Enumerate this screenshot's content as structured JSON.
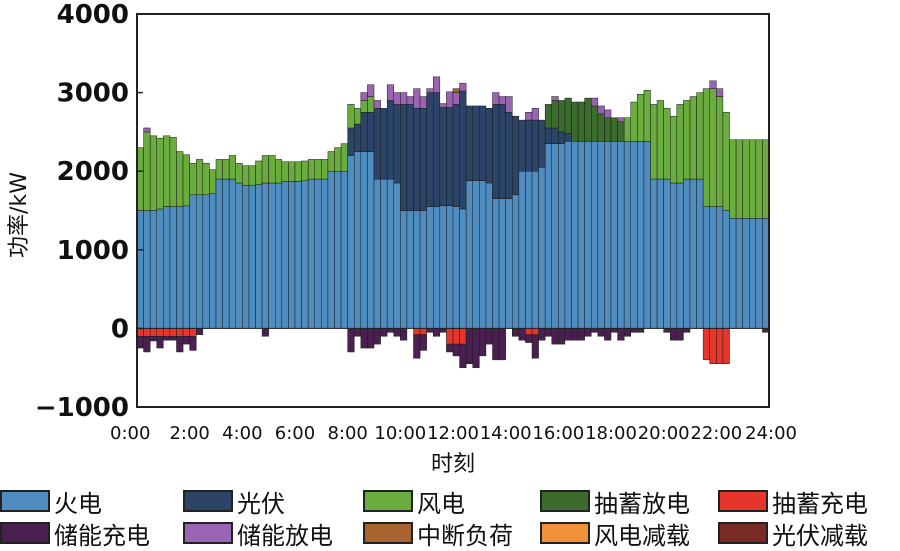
{
  "chart_data": {
    "type": "bar",
    "stacked": true,
    "xlabel": "时刻",
    "ylabel": "功率/kW",
    "ylim": [
      -1000,
      4000
    ],
    "yticks": [
      4000,
      3000,
      2000,
      1000,
      0,
      -1000
    ],
    "ytick_labels": [
      "4000",
      "3000",
      "2000",
      "1000",
      "0",
      "−1000"
    ],
    "xticks": [
      "0:00",
      "2:00",
      "4:00",
      "6:00",
      "8:00",
      "10:00",
      "12:00",
      "14:00",
      "16:00",
      "18:00",
      "20:00",
      "22:00",
      "24:00"
    ],
    "n_intervals": 96,
    "series": [
      {
        "name": "火电",
        "color": "#4f8cc0",
        "values": [
          1500,
          1500,
          1500,
          1520,
          1550,
          1550,
          1550,
          1560,
          1700,
          1700,
          1700,
          1720,
          1900,
          1900,
          1900,
          1850,
          1820,
          1820,
          1830,
          1850,
          1850,
          1850,
          1870,
          1870,
          1870,
          1880,
          1900,
          1900,
          1900,
          2000,
          2000,
          2000,
          2200,
          2250,
          2250,
          2250,
          1900,
          1900,
          1900,
          1850,
          1500,
          1500,
          1500,
          1500,
          1550,
          1550,
          1560,
          1560,
          1550,
          1520,
          1880,
          1880,
          1880,
          1850,
          1650,
          1650,
          1650,
          1700,
          2000,
          2000,
          2000,
          2050,
          2350,
          2350,
          2350,
          2380,
          2380,
          2380,
          2380,
          2380,
          2380,
          2380,
          2380,
          2380,
          2380,
          2380,
          2380,
          2380,
          1900,
          1900,
          1900,
          1850,
          1850,
          1900,
          1900,
          1900,
          1550,
          1550,
          1550,
          1500,
          1400,
          1400,
          1400,
          1400,
          1400,
          1400
        ]
      },
      {
        "name": "光伏",
        "color": "#2b4468",
        "values": [
          0,
          0,
          0,
          0,
          0,
          0,
          0,
          0,
          0,
          0,
          0,
          0,
          0,
          0,
          0,
          0,
          0,
          0,
          0,
          0,
          0,
          0,
          0,
          0,
          0,
          0,
          0,
          0,
          0,
          0,
          0,
          0,
          350,
          350,
          500,
          500,
          900,
          900,
          1000,
          1000,
          1350,
          1350,
          1300,
          1300,
          1450,
          1450,
          1250,
          1250,
          1300,
          1500,
          950,
          950,
          950,
          950,
          1200,
          1200,
          1100,
          1000,
          650,
          650,
          650,
          600,
          200,
          200,
          150,
          100,
          0,
          0,
          0,
          0,
          0,
          0,
          0,
          0,
          0,
          0,
          0,
          0,
          0,
          0,
          0,
          0,
          0,
          0,
          0,
          0,
          0,
          0,
          0,
          0,
          0,
          0,
          0,
          0,
          0,
          0
        ]
      },
      {
        "name": "风电",
        "color": "#6aad3e",
        "values": [
          800,
          1000,
          950,
          900,
          900,
          880,
          700,
          650,
          400,
          450,
          400,
          300,
          250,
          250,
          300,
          250,
          250,
          250,
          300,
          350,
          350,
          300,
          250,
          250,
          250,
          250,
          250,
          250,
          250,
          250,
          300,
          350,
          300,
          200,
          150,
          200,
          0,
          0,
          0,
          0,
          0,
          0,
          0,
          0,
          0,
          0,
          0,
          0,
          0,
          0,
          0,
          0,
          0,
          0,
          0,
          0,
          0,
          0,
          0,
          0,
          0,
          0,
          0,
          0,
          0,
          0,
          0,
          0,
          0,
          0,
          0,
          0,
          0,
          0,
          300,
          500,
          600,
          650,
          950,
          1000,
          900,
          850,
          1000,
          1000,
          1050,
          1100,
          1500,
          1500,
          1400,
          1250,
          1000,
          1000,
          1000,
          1000,
          1000,
          1000
        ]
      },
      {
        "name": "抽蓄放电",
        "color": "#3b6b2d",
        "values": [
          0,
          0,
          0,
          0,
          0,
          0,
          0,
          0,
          0,
          0,
          0,
          0,
          0,
          0,
          0,
          0,
          0,
          0,
          0,
          0,
          0,
          0,
          0,
          0,
          0,
          0,
          0,
          0,
          0,
          0,
          0,
          0,
          0,
          0,
          0,
          0,
          0,
          0,
          0,
          0,
          0,
          0,
          0,
          0,
          0,
          0,
          0,
          0,
          0,
          0,
          0,
          0,
          0,
          0,
          0,
          0,
          0,
          0,
          0,
          0,
          0,
          0,
          300,
          350,
          400,
          450,
          500,
          500,
          550,
          450,
          350,
          300,
          300,
          250,
          0,
          0,
          0,
          0,
          0,
          0,
          0,
          0,
          0,
          0,
          0,
          0,
          0,
          0,
          0,
          0,
          0,
          0,
          0,
          0,
          0,
          0
        ]
      },
      {
        "name": "储能放电",
        "color": "#9a63b4",
        "values": [
          0,
          50,
          0,
          0,
          0,
          0,
          0,
          0,
          0,
          0,
          0,
          0,
          0,
          0,
          0,
          0,
          0,
          0,
          0,
          0,
          0,
          0,
          0,
          0,
          0,
          0,
          0,
          0,
          0,
          0,
          0,
          0,
          0,
          0,
          100,
          150,
          100,
          0,
          200,
          150,
          150,
          100,
          250,
          150,
          50,
          200,
          50,
          200,
          150,
          100,
          0,
          0,
          0,
          0,
          150,
          100,
          200,
          0,
          0,
          100,
          150,
          0,
          0,
          50,
          0,
          0,
          0,
          0,
          0,
          100,
          100,
          100,
          0,
          50,
          0,
          0,
          0,
          0,
          0,
          0,
          0,
          0,
          0,
          0,
          0,
          0,
          0,
          100,
          100,
          0,
          0,
          0,
          0,
          0,
          0,
          0
        ]
      },
      {
        "name": "中断负荷",
        "color": "#a9632e",
        "values": [
          0,
          0,
          0,
          0,
          0,
          0,
          0,
          0,
          0,
          0,
          0,
          0,
          0,
          0,
          0,
          0,
          0,
          0,
          0,
          0,
          0,
          0,
          0,
          0,
          0,
          0,
          0,
          0,
          0,
          0,
          0,
          0,
          0,
          0,
          0,
          0,
          0,
          0,
          0,
          0,
          0,
          0,
          0,
          0,
          0,
          0,
          0,
          0,
          50,
          0,
          0,
          0,
          0,
          0,
          0,
          0,
          0,
          0,
          0,
          0,
          0,
          0,
          0,
          0,
          0,
          0,
          0,
          0,
          0,
          0,
          0,
          0,
          0,
          0,
          0,
          0,
          0,
          0,
          0,
          0,
          0,
          0,
          0,
          0,
          0,
          0,
          0,
          0,
          0,
          0,
          0,
          0,
          0,
          0,
          0,
          0
        ]
      },
      {
        "name": "抽蓄充电",
        "color": "#e8352b",
        "values": [
          -100,
          -100,
          -100,
          -100,
          -100,
          -100,
          -100,
          -100,
          -100,
          0,
          0,
          0,
          0,
          0,
          0,
          0,
          0,
          0,
          0,
          0,
          0,
          0,
          0,
          0,
          0,
          0,
          0,
          0,
          0,
          0,
          0,
          0,
          0,
          0,
          0,
          0,
          0,
          0,
          0,
          0,
          0,
          0,
          -80,
          -80,
          0,
          0,
          0,
          -200,
          -200,
          -200,
          0,
          0,
          0,
          0,
          0,
          0,
          0,
          0,
          0,
          -80,
          -80,
          0,
          0,
          0,
          0,
          0,
          0,
          0,
          0,
          0,
          0,
          0,
          0,
          0,
          0,
          0,
          0,
          0,
          0,
          0,
          0,
          0,
          0,
          0,
          0,
          0,
          -400,
          -450,
          -450,
          -450,
          0,
          0,
          0,
          0,
          0,
          0
        ]
      },
      {
        "name": "储能充电",
        "color": "#4a2050",
        "values": [
          -150,
          -200,
          -60,
          -150,
          -50,
          -50,
          -200,
          -100,
          -180,
          -80,
          0,
          0,
          0,
          0,
          0,
          0,
          0,
          0,
          0,
          -100,
          0,
          0,
          0,
          0,
          0,
          0,
          0,
          0,
          0,
          0,
          0,
          0,
          -300,
          -100,
          -250,
          -250,
          -200,
          -100,
          -50,
          -100,
          -150,
          0,
          -300,
          -200,
          -50,
          -100,
          -50,
          -100,
          -150,
          -300,
          -450,
          -500,
          -350,
          -200,
          -400,
          -400,
          0,
          -100,
          -150,
          -100,
          -300,
          -150,
          -100,
          -200,
          -200,
          -150,
          -150,
          -150,
          -100,
          -50,
          -100,
          -150,
          -50,
          -150,
          -100,
          -50,
          -50,
          0,
          0,
          0,
          -50,
          -150,
          -150,
          -50,
          0,
          0,
          0,
          0,
          0,
          0,
          0,
          0,
          0,
          0,
          0,
          -50
        ]
      }
    ],
    "legend_extra": [
      {
        "name": "风电减载",
        "color": "#f0913a"
      },
      {
        "name": "光伏减载",
        "color": "#7b2b26"
      }
    ],
    "legend_order": [
      "火电",
      "光伏",
      "风电",
      "抽蓄放电",
      "抽蓄充电",
      "储能充电",
      "储能放电",
      "中断负荷",
      "风电减载",
      "光伏减载"
    ]
  }
}
